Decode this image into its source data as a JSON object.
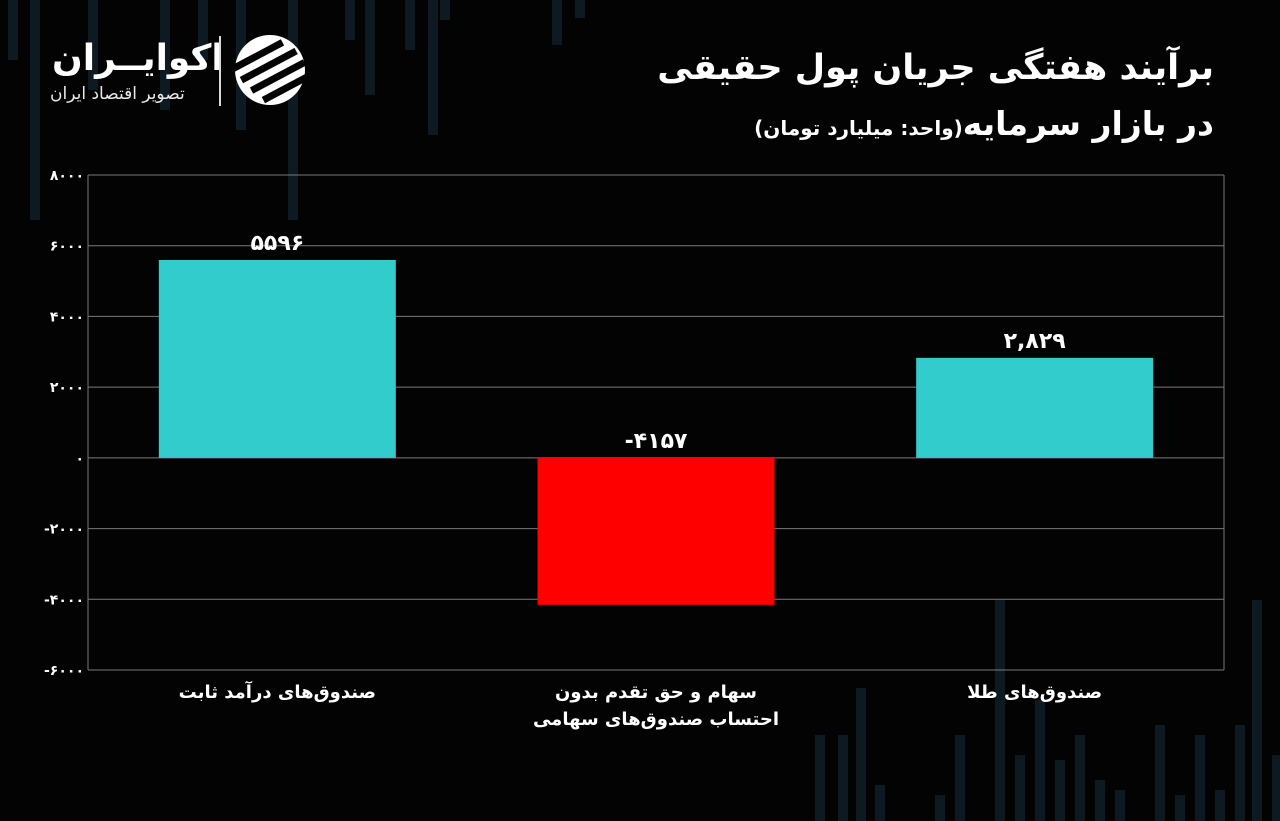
{
  "title_line1": "برآیند هفتگی جریان پول حقیقی",
  "title_line2": "در بازار سرمایه",
  "subtitle": "(واحد: میلیارد تومان)",
  "logo": {
    "name": "اکوایــران",
    "tagline": "تصویر اقتصاد ایران"
  },
  "colors": {
    "positive": "#33CCCC",
    "negative": "#FF0000",
    "background": "#030303",
    "grid": "#7a7a7a"
  },
  "chart_data": {
    "type": "bar",
    "categories": [
      "صندوق‌های درآمد ثابت",
      "سهام و حق تقدم بدون احتساب صندوق‌های سهامی",
      "صندوق‌های طلا"
    ],
    "category_lines": [
      [
        "صندوق‌های درآمد ثابت"
      ],
      [
        "سهام و حق تقدم بدون",
        "احتساب صندوق‌های سهامی"
      ],
      [
        "صندوق‌های طلا"
      ]
    ],
    "values": [
      5596,
      -4157,
      2829
    ],
    "data_labels": [
      "۵۵۹۶",
      "-۴۱۵۷",
      "۲,۸۲۹"
    ],
    "ylim": [
      -6000,
      8000
    ],
    "yticks": [
      8000,
      6000,
      4000,
      2000,
      0,
      -2000,
      -4000,
      -6000
    ],
    "ytick_labels": [
      "۸۰۰۰",
      "۶۰۰۰",
      "۴۰۰۰",
      "۲۰۰۰",
      "۰",
      "-۲۰۰۰",
      "-۴۰۰۰",
      "-۶۰۰۰"
    ],
    "grid": true,
    "legend": "none"
  }
}
